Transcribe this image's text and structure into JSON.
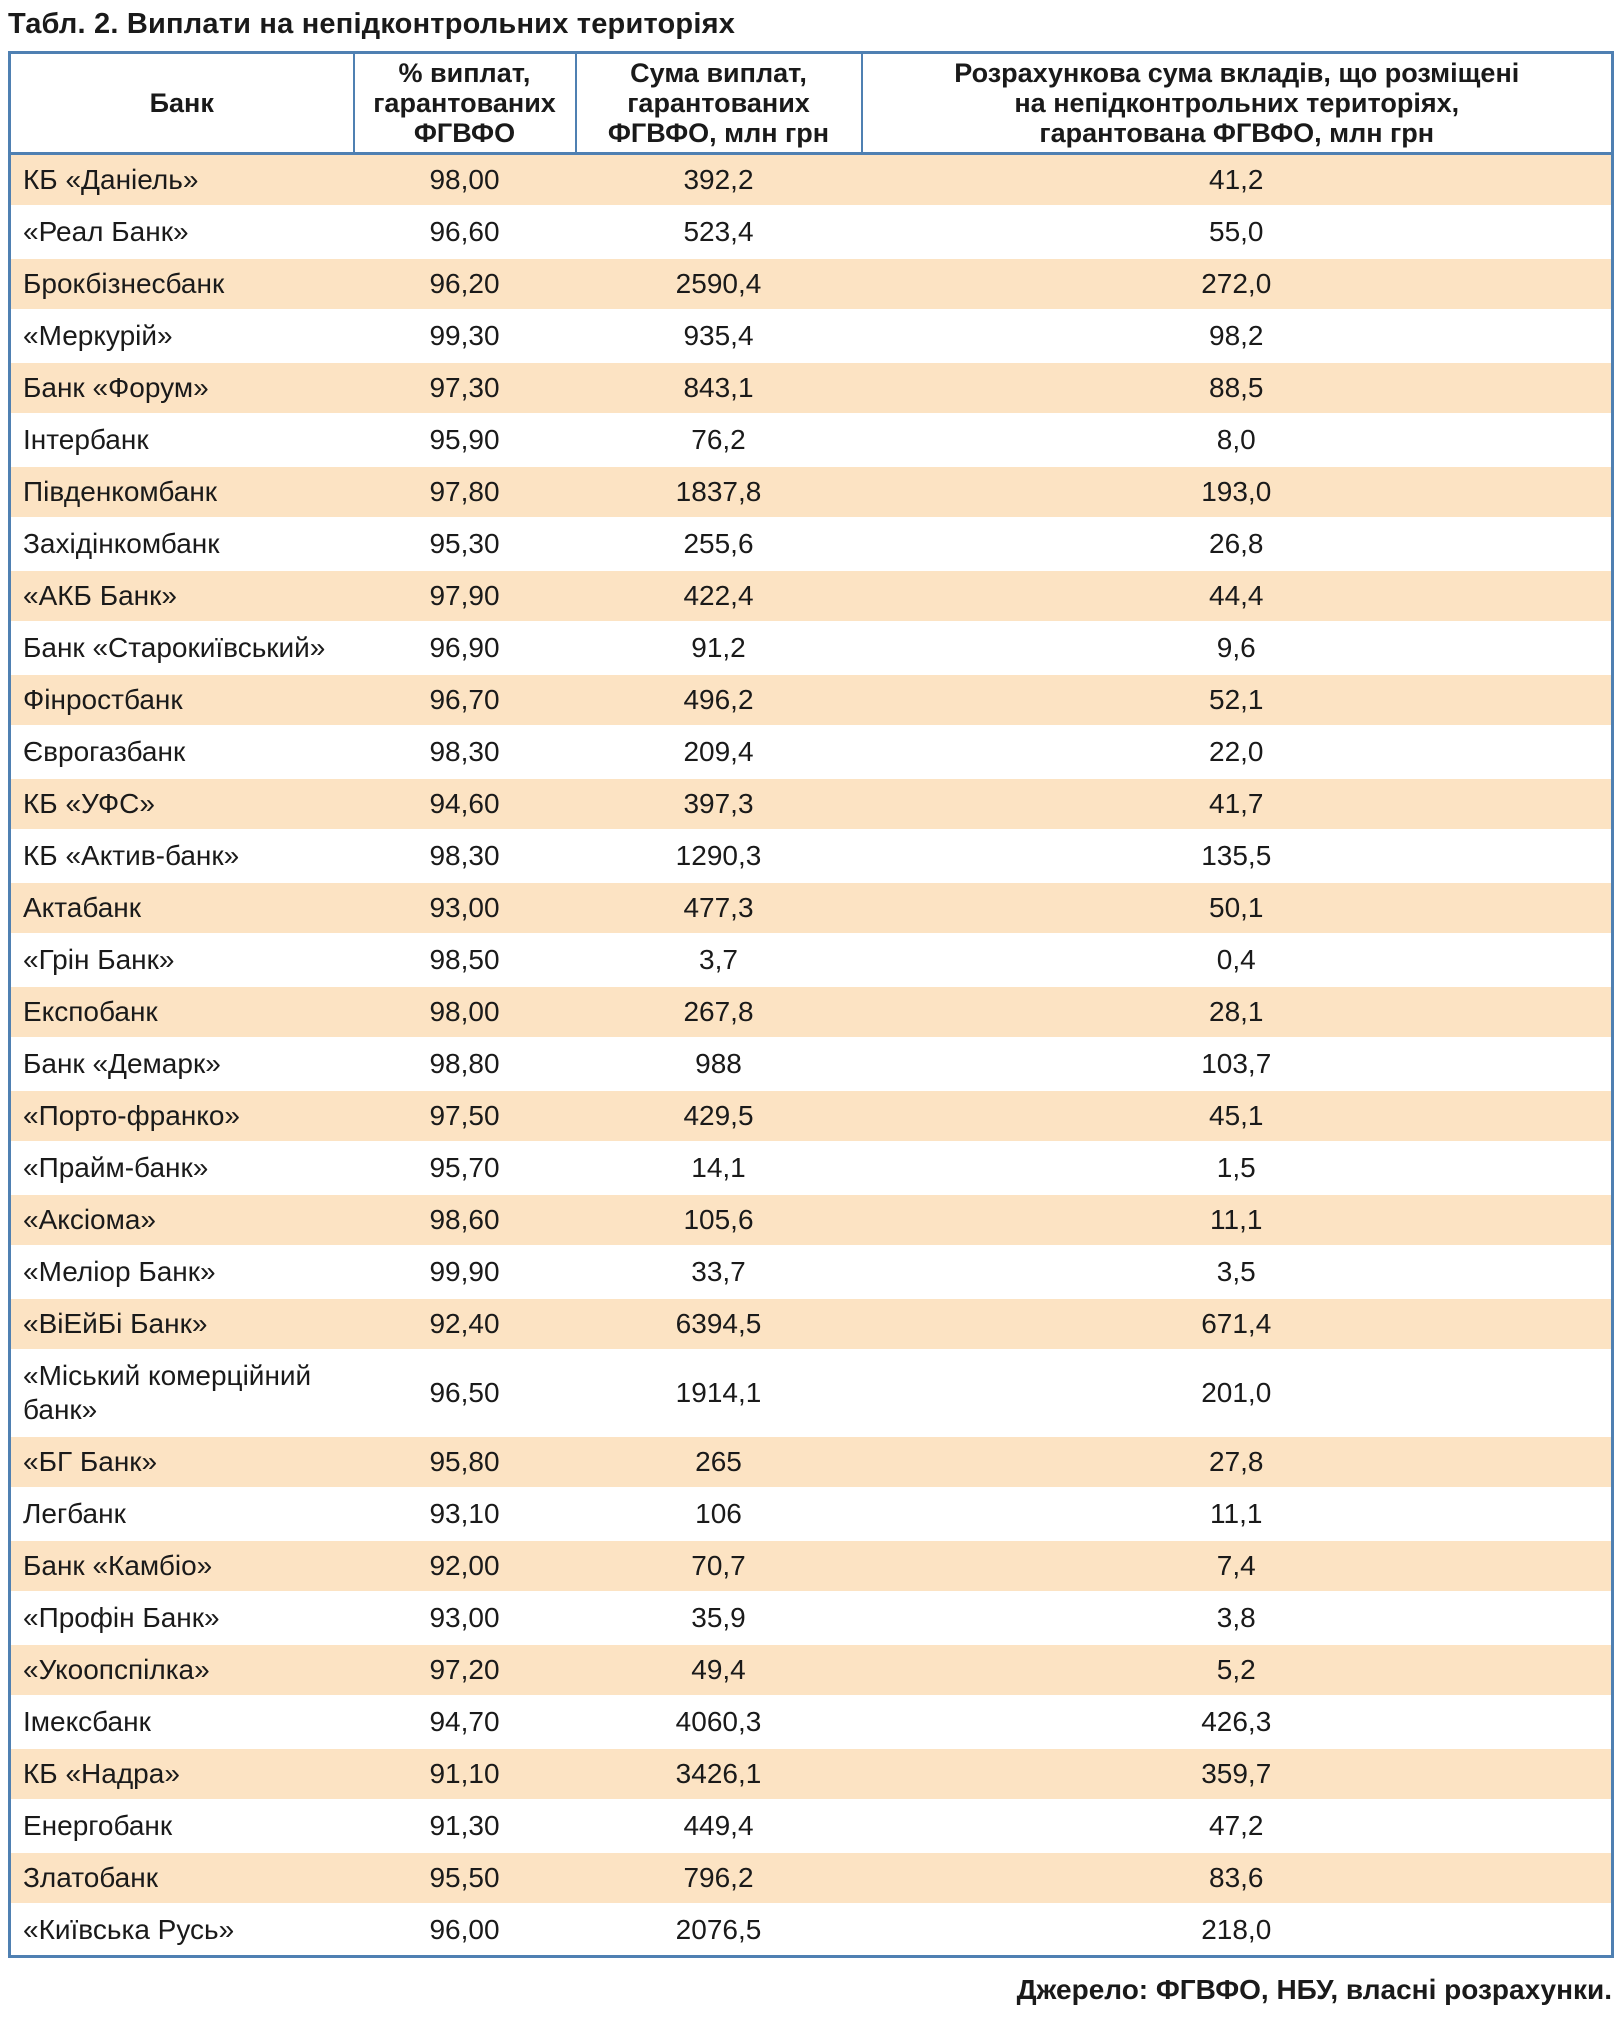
{
  "title": "Табл. 2. Виплати на непідконтрольних територіях",
  "source": "Джерело: ФГВФО, НБУ, власні розрахунки.",
  "colors": {
    "border": "#4f80b2",
    "stripe": "#fce3c3",
    "text": "#1a1a1a"
  },
  "table": {
    "columns": [
      "Банк",
      "% виплат,\nгарантованих\nФГВФО",
      "Сума виплат,\nгарантованих\nФГВФО, млн грн",
      "Розрахункова сума вкладів, що розміщені\nна непідконтрольних територіях,\nгарантована ФГВФО, млн грн"
    ],
    "rows": [
      [
        "КБ «Даніель»",
        "98,00",
        "392,2",
        "41,2"
      ],
      [
        "«Реал Банк»",
        "96,60",
        "523,4",
        "55,0"
      ],
      [
        "Брокбізнесбанк",
        "96,20",
        "2590,4",
        "272,0"
      ],
      [
        "«Меркурій»",
        "99,30",
        "935,4",
        "98,2"
      ],
      [
        "Банк «Форум»",
        "97,30",
        "843,1",
        "88,5"
      ],
      [
        "Інтербанк",
        "95,90",
        "76,2",
        "8,0"
      ],
      [
        "Південкомбанк",
        "97,80",
        "1837,8",
        "193,0"
      ],
      [
        "Західінкомбанк",
        "95,30",
        "255,6",
        "26,8"
      ],
      [
        "«АКБ Банк»",
        "97,90",
        "422,4",
        "44,4"
      ],
      [
        "Банк «Старокиївський»",
        "96,90",
        "91,2",
        "9,6"
      ],
      [
        "Фінростбанк",
        "96,70",
        "496,2",
        "52,1"
      ],
      [
        "Єврогазбанк",
        "98,30",
        "209,4",
        "22,0"
      ],
      [
        "КБ «УФС»",
        "94,60",
        "397,3",
        "41,7"
      ],
      [
        "КБ «Актив-банк»",
        "98,30",
        "1290,3",
        "135,5"
      ],
      [
        "Актабанк",
        "93,00",
        "477,3",
        "50,1"
      ],
      [
        "«Грін Банк»",
        "98,50",
        "3,7",
        "0,4"
      ],
      [
        "Експобанк",
        "98,00",
        "267,8",
        "28,1"
      ],
      [
        "Банк «Демарк»",
        "98,80",
        "988",
        "103,7"
      ],
      [
        "«Порто-франко»",
        "97,50",
        "429,5",
        "45,1"
      ],
      [
        "«Прайм-банк»",
        "95,70",
        "14,1",
        "1,5"
      ],
      [
        "«Аксіома»",
        "98,60",
        "105,6",
        "11,1"
      ],
      [
        "«Меліор Банк»",
        "99,90",
        "33,7",
        "3,5"
      ],
      [
        "«ВіЕйБі Банк»",
        "92,40",
        "6394,5",
        "671,4"
      ],
      [
        "«Міський комерційний банк»",
        "96,50",
        "1914,1",
        "201,0"
      ],
      [
        "«БГ Банк»",
        "95,80",
        "265",
        "27,8"
      ],
      [
        "Легбанк",
        "93,10",
        "106",
        "11,1"
      ],
      [
        "Банк «Камбіо»",
        "92,00",
        "70,7",
        "7,4"
      ],
      [
        "«Профін Банк»",
        "93,00",
        "35,9",
        "3,8"
      ],
      [
        "«Укоопспілка»",
        "97,20",
        "49,4",
        "5,2"
      ],
      [
        "Імексбанк",
        "94,70",
        "4060,3",
        "426,3"
      ],
      [
        "КБ «Надра»",
        "91,10",
        "3426,1",
        "359,7"
      ],
      [
        "Енергобанк",
        "91,30",
        "449,4",
        "47,2"
      ],
      [
        "Златобанк",
        "95,50",
        "796,2",
        "83,6"
      ],
      [
        "«Київська Русь»",
        "96,00",
        "2076,5",
        "218,0"
      ]
    ]
  },
  "chart_data": {
    "type": "table",
    "title": "Табл. 2. Виплати на непідконтрольних територіях",
    "columns": [
      "Банк",
      "% виплат, гарантованих ФГВФО",
      "Сума виплат, гарантованих ФГВФО, млн грн",
      "Розрахункова сума вкладів, що розміщені на непідконтрольних територіях, гарантована ФГВФО, млн грн"
    ],
    "rows": [
      [
        "КБ «Даніель»",
        98.0,
        392.2,
        41.2
      ],
      [
        "«Реал Банк»",
        96.6,
        523.4,
        55.0
      ],
      [
        "Брокбізнесбанк",
        96.2,
        2590.4,
        272.0
      ],
      [
        "«Меркурій»",
        99.3,
        935.4,
        98.2
      ],
      [
        "Банк «Форум»",
        97.3,
        843.1,
        88.5
      ],
      [
        "Інтербанк",
        95.9,
        76.2,
        8.0
      ],
      [
        "Південкомбанк",
        97.8,
        1837.8,
        193.0
      ],
      [
        "Західінкомбанк",
        95.3,
        255.6,
        26.8
      ],
      [
        "«АКБ Банк»",
        97.9,
        422.4,
        44.4
      ],
      [
        "Банк «Старокиївський»",
        96.9,
        91.2,
        9.6
      ],
      [
        "Фінростбанк",
        96.7,
        496.2,
        52.1
      ],
      [
        "Єврогазбанк",
        98.3,
        209.4,
        22.0
      ],
      [
        "КБ «УФС»",
        94.6,
        397.3,
        41.7
      ],
      [
        "КБ «Актив-банк»",
        98.3,
        1290.3,
        135.5
      ],
      [
        "Актабанк",
        93.0,
        477.3,
        50.1
      ],
      [
        "«Грін Банк»",
        98.5,
        3.7,
        0.4
      ],
      [
        "Експобанк",
        98.0,
        267.8,
        28.1
      ],
      [
        "Банк «Демарк»",
        98.8,
        988,
        103.7
      ],
      [
        "«Порто-франко»",
        97.5,
        429.5,
        45.1
      ],
      [
        "«Прайм-банк»",
        95.7,
        14.1,
        1.5
      ],
      [
        "«Аксіома»",
        98.6,
        105.6,
        11.1
      ],
      [
        "«Меліор Банк»",
        99.9,
        33.7,
        3.5
      ],
      [
        "«ВіЕйБі Банк»",
        92.4,
        6394.5,
        671.4
      ],
      [
        "«Міський комерційний банк»",
        96.5,
        1914.1,
        201.0
      ],
      [
        "«БГ Банк»",
        95.8,
        265,
        27.8
      ],
      [
        "Легбанк",
        93.1,
        106,
        11.1
      ],
      [
        "Банк «Камбіо»",
        92.0,
        70.7,
        7.4
      ],
      [
        "«Профін Банк»",
        93.0,
        35.9,
        3.8
      ],
      [
        "«Укоопспілка»",
        97.2,
        49.4,
        5.2
      ],
      [
        "Імексбанк",
        94.7,
        4060.3,
        426.3
      ],
      [
        "КБ «Надра»",
        91.1,
        3426.1,
        359.7
      ],
      [
        "Енергобанк",
        91.3,
        449.4,
        47.2
      ],
      [
        "Златобанк",
        95.5,
        796.2,
        83.6
      ],
      [
        "«Київська Русь»",
        96.0,
        2076.5,
        218.0
      ]
    ],
    "notes": "Decimal comma used in display; source note: Джерело: ФГВФО, НБУ, власні розрахунки."
  }
}
